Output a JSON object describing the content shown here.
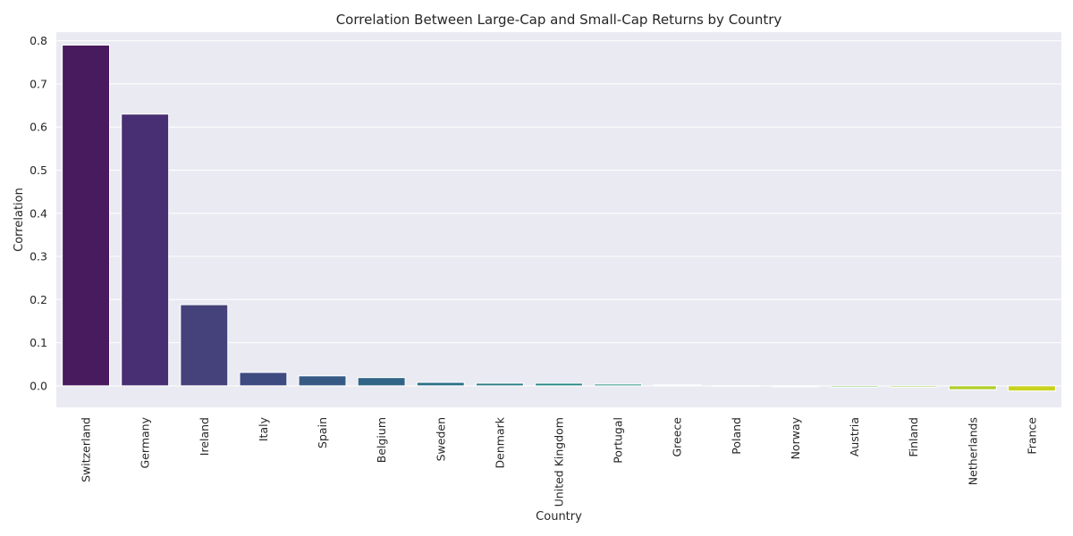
{
  "chart_data": {
    "type": "bar",
    "title": "Correlation Between Large-Cap and Small-Cap Returns by Country",
    "xlabel": "Country",
    "ylabel": "Correlation",
    "ylim": [
      -0.05,
      0.82
    ],
    "yticks": [
      "0.0",
      "0.1",
      "0.2",
      "0.3",
      "0.4",
      "0.5",
      "0.6",
      "0.7",
      "0.8"
    ],
    "grid": true,
    "categories": [
      "Switzerland",
      "Germany",
      "Ireland",
      "Italy",
      "Spain",
      "Belgium",
      "Sweden",
      "Denmark",
      "United Kingdom",
      "Portugal",
      "Greece",
      "Poland",
      "Norway",
      "Austria",
      "Finland",
      "Netherlands",
      "France"
    ],
    "values": [
      0.79,
      0.63,
      0.188,
      0.031,
      0.023,
      0.019,
      0.008,
      0.006,
      0.006,
      0.004,
      0.002,
      0.0,
      -0.002,
      -0.003,
      -0.003,
      -0.009,
      -0.012
    ],
    "colors": [
      "#481a5e",
      "#482f73",
      "#45417b",
      "#3e4b80",
      "#375a85",
      "#306586",
      "#2c7087",
      "#267b86",
      "#228584",
      "#1f8e80",
      "#20997a",
      "#2fa56d",
      "#4eb15c",
      "#6fbc49",
      "#94c73a",
      "#b2cd2d",
      "#c9d21f"
    ]
  }
}
